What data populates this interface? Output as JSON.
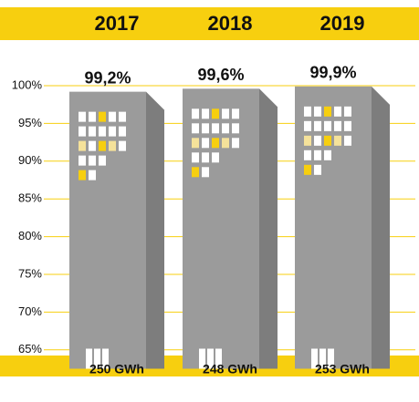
{
  "chart_data": {
    "type": "bar",
    "categories": [
      "2017",
      "2018",
      "2019"
    ],
    "values": [
      99.2,
      99.6,
      99.9
    ],
    "value_labels": [
      "99,2%",
      "99,6%",
      "99,9%"
    ],
    "footer_labels": [
      "250 GWh",
      "248 GWh",
      "253 GWh"
    ],
    "color": "#9b9b9b",
    "ylim": [
      62.5,
      100
    ],
    "yticks": [
      {
        "value": 100,
        "label": "100%"
      },
      {
        "value": 95,
        "label": "95%"
      },
      {
        "value": 90,
        "label": "90%"
      },
      {
        "value": 85,
        "label": "85%"
      },
      {
        "value": 80,
        "label": "80%"
      },
      {
        "value": 75,
        "label": "75%"
      },
      {
        "value": 70,
        "label": "70%"
      },
      {
        "value": 65,
        "label": "65%"
      }
    ],
    "grid": true
  }
}
